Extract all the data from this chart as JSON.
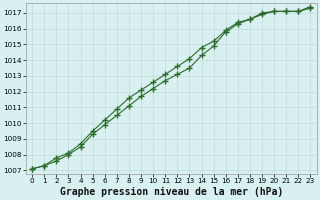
{
  "xlabel": "Graphe pression niveau de la mer (hPa)",
  "background_color": "#d8f0f0",
  "grid_color": "#c0dada",
  "line_color": "#2d6b2d",
  "ylim": [
    1006.8,
    1017.6
  ],
  "xlim": [
    -0.5,
    23.5
  ],
  "yticks": [
    1007,
    1008,
    1009,
    1010,
    1011,
    1012,
    1013,
    1014,
    1015,
    1016,
    1017
  ],
  "xticks": [
    0,
    1,
    2,
    3,
    4,
    5,
    6,
    7,
    8,
    9,
    10,
    11,
    12,
    13,
    14,
    15,
    16,
    17,
    18,
    19,
    20,
    21,
    22,
    23
  ],
  "series1_x": [
    0,
    1,
    2,
    3,
    4,
    5,
    6,
    7,
    8,
    9,
    10,
    11,
    12,
    13,
    14,
    15,
    16,
    17,
    18,
    19,
    20,
    21,
    22,
    23
  ],
  "series1_y": [
    1007.1,
    1007.3,
    1007.6,
    1008.0,
    1008.5,
    1009.3,
    1009.9,
    1010.5,
    1011.1,
    1011.7,
    1012.2,
    1012.7,
    1013.1,
    1013.5,
    1014.3,
    1014.9,
    1015.8,
    1016.3,
    1016.6,
    1017.0,
    1017.1,
    1017.1,
    1017.1,
    1017.3
  ],
  "series2_x": [
    0,
    1,
    2,
    3,
    4,
    5,
    6,
    7,
    8,
    9,
    10,
    11,
    12,
    13,
    14,
    15,
    16,
    17,
    18,
    19,
    20,
    21,
    22,
    23
  ],
  "series2_y": [
    1007.1,
    1007.3,
    1007.8,
    1008.1,
    1008.7,
    1009.5,
    1010.2,
    1010.9,
    1011.6,
    1012.1,
    1012.6,
    1013.1,
    1013.6,
    1014.1,
    1014.8,
    1015.2,
    1015.9,
    1016.4,
    1016.6,
    1016.9,
    1017.1,
    1017.1,
    1017.1,
    1017.4
  ],
  "tick_fontsize": 5.2,
  "xlabel_fontsize": 7.0,
  "xlabel_fontweight": "bold"
}
